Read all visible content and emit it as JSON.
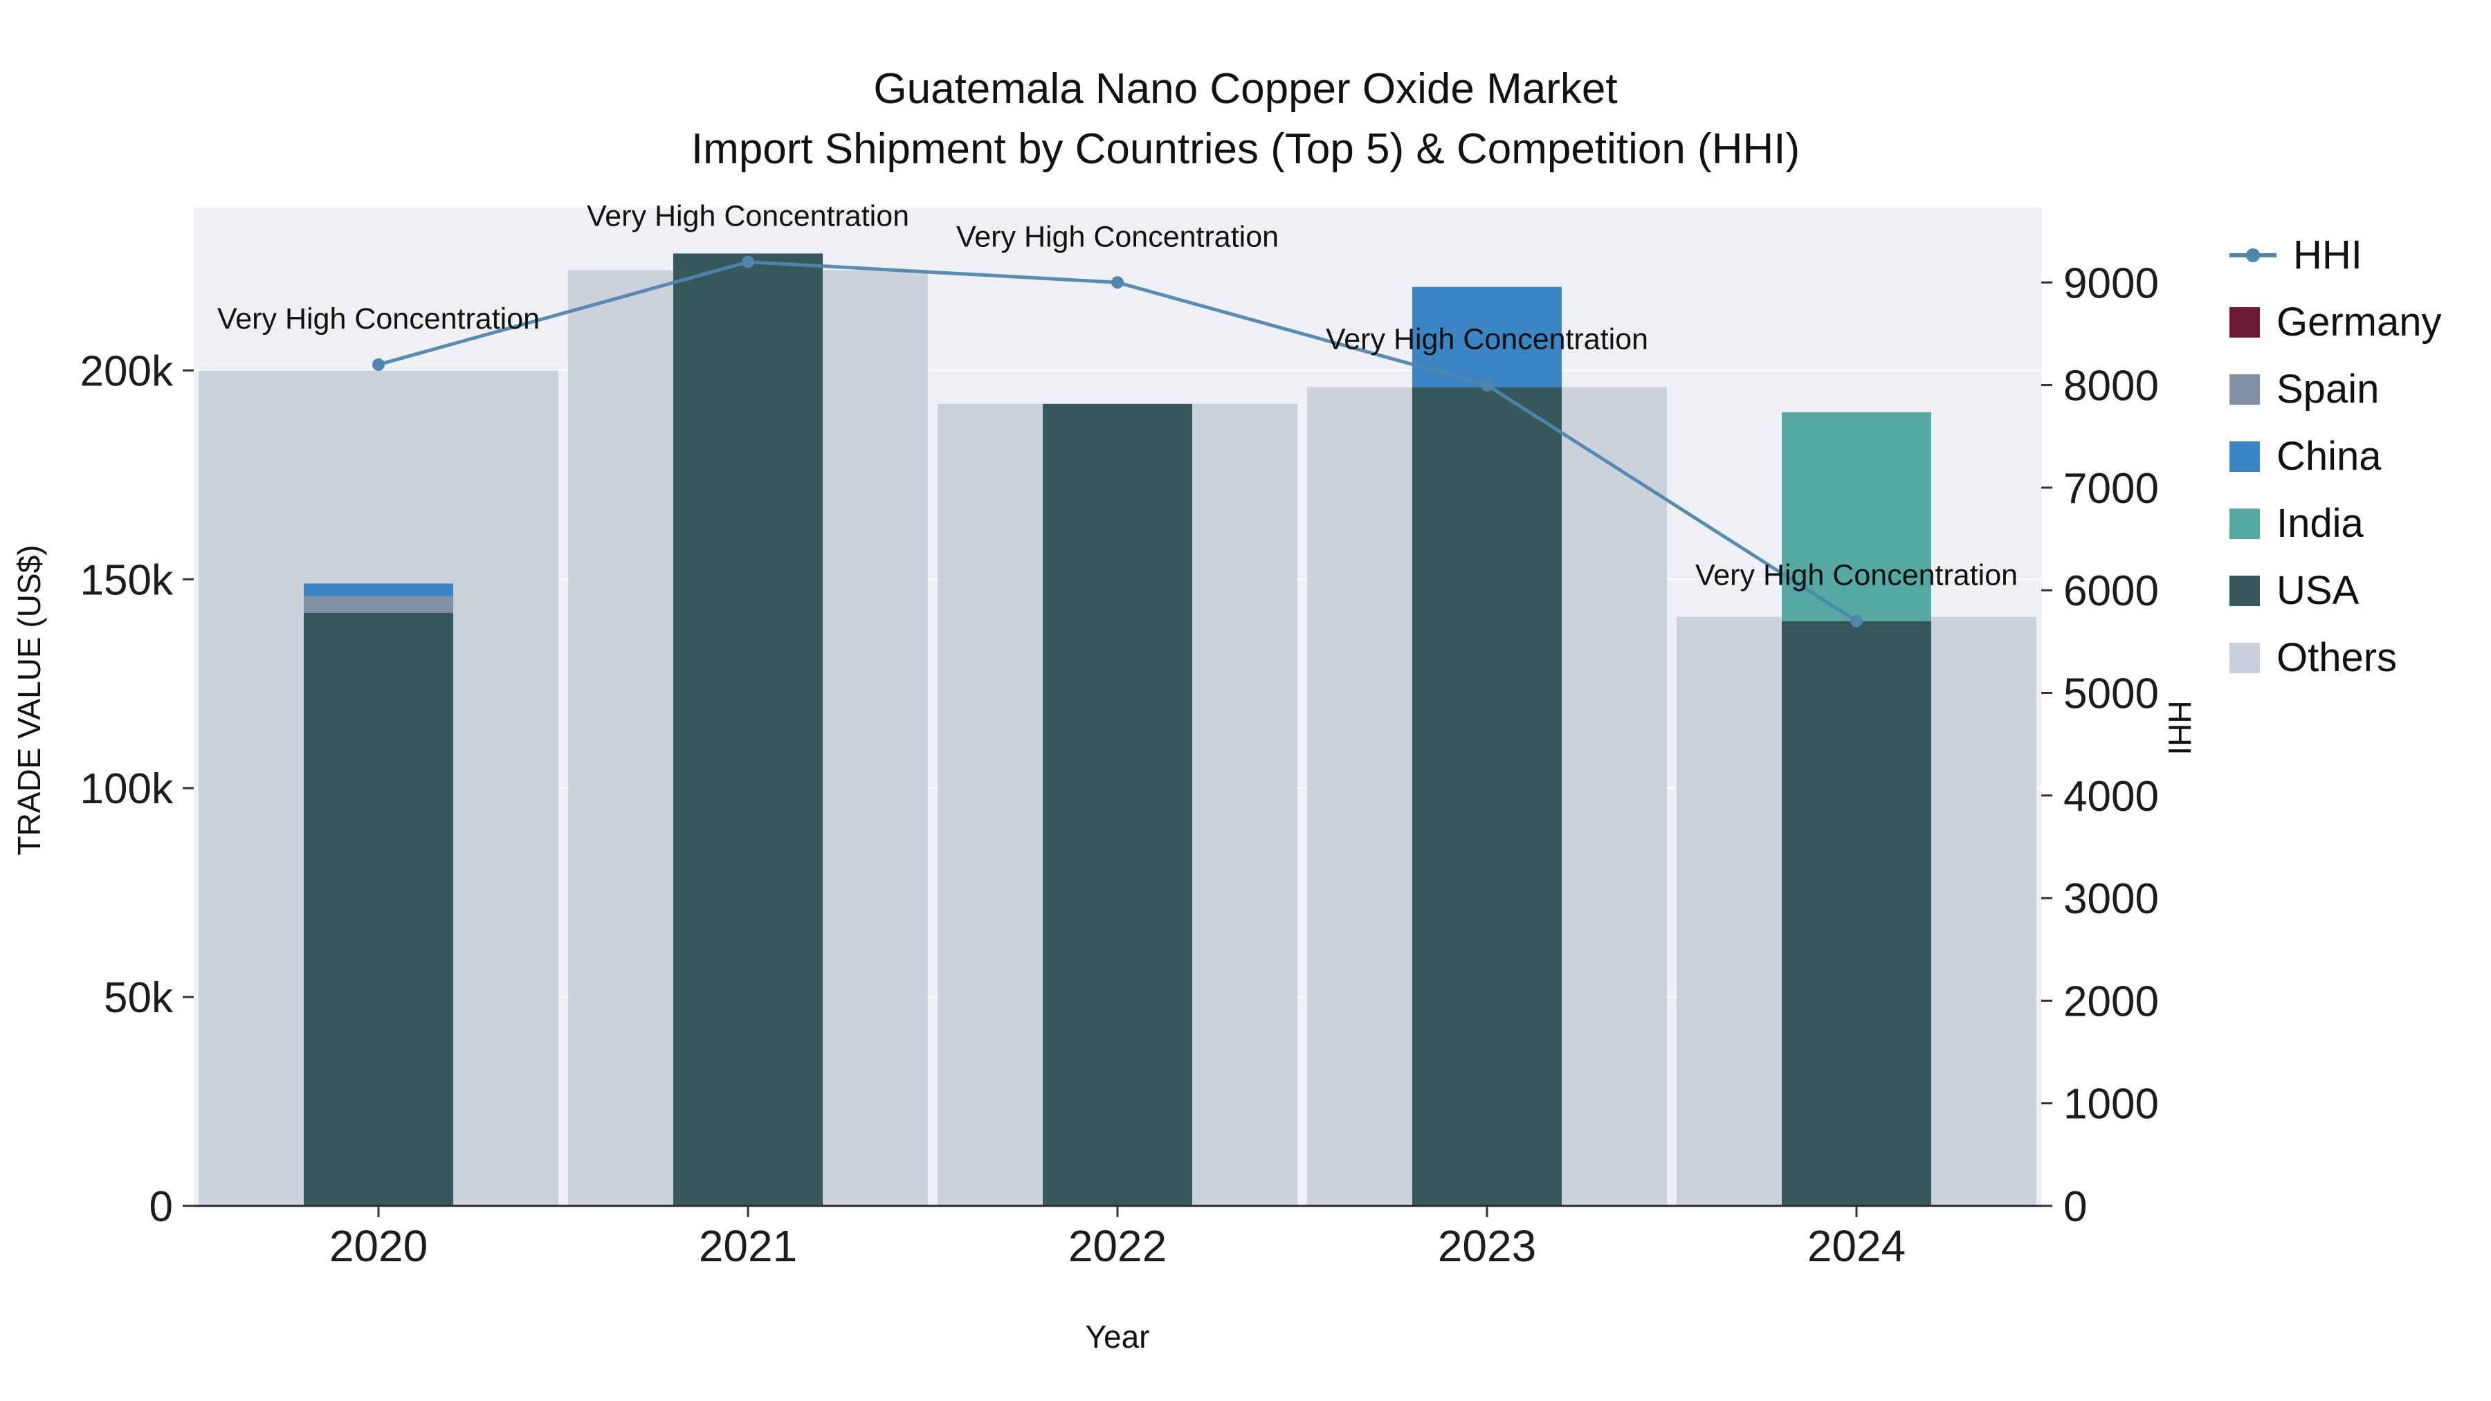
{
  "title": {
    "line1": "Guatemala Nano Copper Oxide Market",
    "line2": "Import Shipment by Countries (Top 5) & Competition (HHI)"
  },
  "axes": {
    "x_label": "Year",
    "y_left_label": "TRADE VALUE (US$)",
    "y_right_label": "HHI",
    "y_left_ticks": [
      {
        "label": "0",
        "value": 0
      },
      {
        "label": "50k",
        "value": 50000
      },
      {
        "label": "100k",
        "value": 100000
      },
      {
        "label": "150k",
        "value": 150000
      },
      {
        "label": "200k",
        "value": 200000
      }
    ],
    "y_right_ticks": [
      {
        "label": "0",
        "value": 0
      },
      {
        "label": "1000",
        "value": 1000
      },
      {
        "label": "2000",
        "value": 2000
      },
      {
        "label": "3000",
        "value": 3000
      },
      {
        "label": "4000",
        "value": 4000
      },
      {
        "label": "5000",
        "value": 5000
      },
      {
        "label": "6000",
        "value": 6000
      },
      {
        "label": "7000",
        "value": 7000
      },
      {
        "label": "8000",
        "value": 8000
      },
      {
        "label": "9000",
        "value": 9000
      }
    ]
  },
  "legend": {
    "items": [
      {
        "label": "HHI",
        "color": "#4f86ae",
        "type": "line"
      },
      {
        "label": "Germany",
        "color": "#6d1a34",
        "type": "square"
      },
      {
        "label": "Spain",
        "color": "#8292a4",
        "type": "square"
      },
      {
        "label": "China",
        "color": "#3c85c5",
        "type": "square"
      },
      {
        "label": "India",
        "color": "#56a8a2",
        "type": "square"
      },
      {
        "label": "USA",
        "color": "#37585a",
        "type": "square"
      },
      {
        "label": "Others",
        "color": "#c9cfda",
        "type": "square"
      }
    ]
  },
  "chart_data": {
    "type": "bar",
    "title": "Guatemala Nano Copper Oxide Market Import Shipment by Countries (Top 5) & Competition (HHI)",
    "xlabel": "Year",
    "ylabel_left": "TRADE VALUE (US$)",
    "ylabel_right": "HHI",
    "categories": [
      "2020",
      "2021",
      "2022",
      "2023",
      "2024"
    ],
    "y_left_range": [
      0,
      239000
    ],
    "y_right_range": [
      0,
      9730
    ],
    "bar_series": [
      {
        "name": "USA",
        "color": "#37585a",
        "width": "narrow",
        "values": [
          142000,
          228000,
          192000,
          196000,
          140000
        ]
      },
      {
        "name": "Spain",
        "color": "#8292a4",
        "width": "narrow",
        "values": [
          4000,
          0,
          0,
          0,
          0
        ]
      },
      {
        "name": "China",
        "color": "#3c85c5",
        "width": "narrow",
        "values": [
          3000,
          0,
          0,
          24000,
          0
        ]
      },
      {
        "name": "India",
        "color": "#56a8a2",
        "width": "narrow",
        "values": [
          0,
          0,
          0,
          0,
          50000
        ]
      },
      {
        "name": "Germany",
        "color": "#6d1a34",
        "width": "narrow",
        "values": [
          0,
          0,
          0,
          0,
          0
        ]
      },
      {
        "name": "Others",
        "color": "#c9cfda",
        "width": "wide",
        "values": [
          200000,
          224000,
          192000,
          196000,
          141000
        ]
      }
    ],
    "line_series": {
      "name": "HHI",
      "color": "#4f86ae",
      "axis": "right",
      "values": [
        8200,
        9200,
        9000,
        8000,
        5700
      ]
    },
    "annotations": [
      {
        "year": "2020",
        "text": "Very High Concentration"
      },
      {
        "year": "2021",
        "text": "Very High Concentration"
      },
      {
        "year": "2022",
        "text": "Very High Concentration"
      },
      {
        "year": "2023",
        "text": "Very High Concentration"
      },
      {
        "year": "2024",
        "text": "Very High Concentration"
      }
    ],
    "legend_position": "right",
    "grid": true,
    "plot_background": "#eef0f3"
  }
}
